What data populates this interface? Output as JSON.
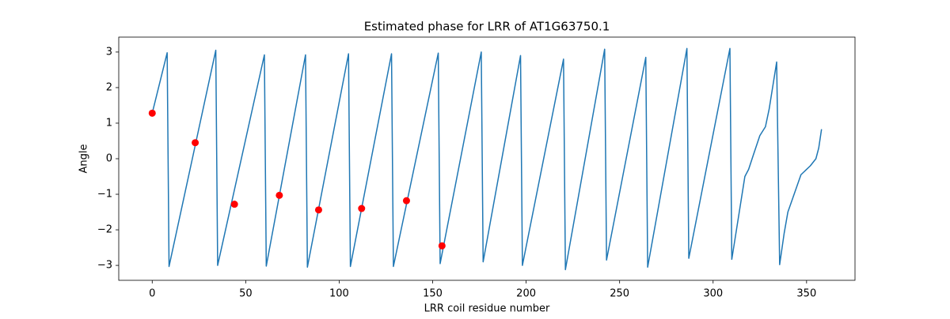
{
  "chart_data": {
    "type": "line",
    "title": "Estimated phase for LRR of AT1G63750.1",
    "xlabel": "LRR coil residue number",
    "ylabel": "Angle",
    "xlim": [
      -17.9,
      375.9
    ],
    "ylim": [
      -3.42,
      3.42
    ],
    "xticks": [
      0,
      50,
      100,
      150,
      200,
      250,
      300,
      350
    ],
    "yticks": [
      {
        "value": -3,
        "label": "−3"
      },
      {
        "value": -2,
        "label": "−2"
      },
      {
        "value": -1,
        "label": "−1"
      },
      0,
      1,
      2,
      3
    ],
    "series": [
      {
        "type": "line",
        "color": "#1f77b4",
        "x": [
          0,
          8,
          9,
          34,
          35,
          60,
          61,
          82,
          83,
          105,
          106,
          128,
          129,
          153,
          154,
          176,
          177,
          197,
          198,
          220,
          221,
          242,
          243,
          264,
          265,
          286,
          287,
          309,
          310,
          317,
          319,
          321.5,
          325,
          328,
          330,
          334,
          335.6,
          338,
          340,
          344,
          347,
          352,
          355,
          356.5,
          358
        ],
        "values": [
          1.28,
          2.98,
          -3.03,
          3.05,
          -3.0,
          2.92,
          -3.02,
          2.92,
          -3.05,
          2.95,
          -3.03,
          2.95,
          -3.03,
          2.97,
          -2.95,
          3.0,
          -2.9,
          2.9,
          -3.0,
          2.8,
          -3.12,
          3.08,
          -2.85,
          2.85,
          -3.05,
          3.1,
          -2.8,
          3.1,
          -2.83,
          -0.5,
          -0.3,
          0.1,
          0.65,
          0.9,
          1.4,
          2.72,
          -2.98,
          -2.1,
          -1.5,
          -0.9,
          -0.45,
          -0.2,
          0.0,
          0.3,
          0.83
        ]
      },
      {
        "type": "scatter",
        "color": "#ff0000",
        "x": [
          0,
          23,
          44,
          68,
          89,
          112,
          136,
          155
        ],
        "values": [
          1.28,
          0.45,
          -1.28,
          -1.03,
          -1.44,
          -1.4,
          -1.18,
          -2.45
        ]
      }
    ]
  }
}
